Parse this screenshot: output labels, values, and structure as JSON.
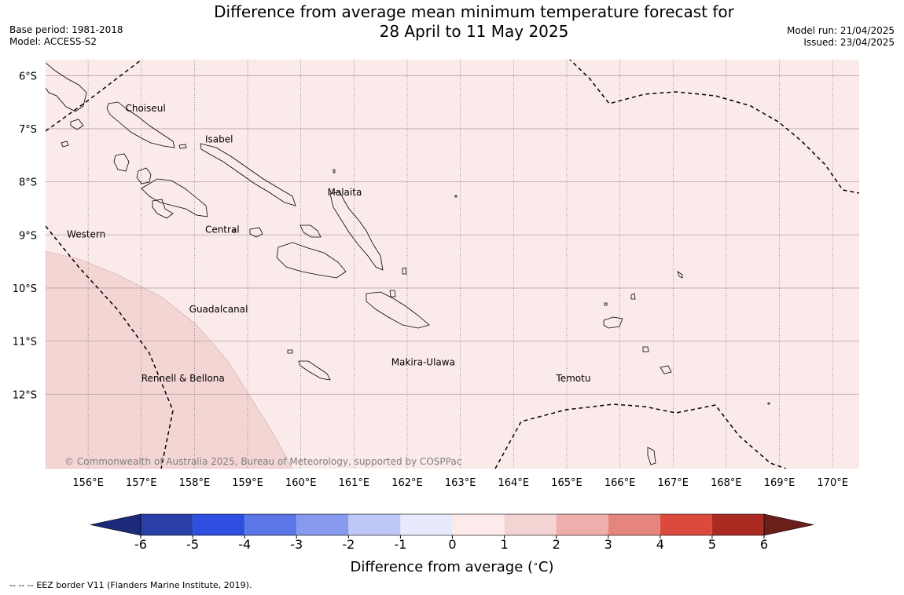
{
  "title": {
    "line1": "Difference from average mean minimum temperature forecast for",
    "line2": "28 April to 11 May 2025"
  },
  "meta_left": {
    "base_period": "Base period: 1981-2018",
    "model": "Model: ACCESS-S2"
  },
  "meta_right": {
    "model_run": "Model run: 21/04/2025",
    "issued": "Issued: 23/04/2025"
  },
  "map": {
    "lon_range": [
      155.2,
      170.5
    ],
    "lat_range": [
      -13.4,
      -5.7
    ],
    "lon_ticks": [
      {
        "value": 156,
        "label": "156°E"
      },
      {
        "value": 157,
        "label": "157°E"
      },
      {
        "value": 158,
        "label": "158°E"
      },
      {
        "value": 159,
        "label": "159°E"
      },
      {
        "value": 160,
        "label": "160°E"
      },
      {
        "value": 161,
        "label": "161°E"
      },
      {
        "value": 162,
        "label": "162°E"
      },
      {
        "value": 163,
        "label": "163°E"
      },
      {
        "value": 164,
        "label": "164°E"
      },
      {
        "value": 165,
        "label": "165°E"
      },
      {
        "value": 166,
        "label": "166°E"
      },
      {
        "value": 167,
        "label": "167°E"
      },
      {
        "value": 168,
        "label": "168°E"
      },
      {
        "value": 169,
        "label": "169°E"
      },
      {
        "value": 170,
        "label": "170°E"
      }
    ],
    "lat_ticks": [
      {
        "value": -6,
        "label": "6°S"
      },
      {
        "value": -7,
        "label": "7°S"
      },
      {
        "value": -8,
        "label": "8°S"
      },
      {
        "value": -9,
        "label": "9°S"
      },
      {
        "value": -10,
        "label": "10°S"
      },
      {
        "value": -11,
        "label": "11°S"
      },
      {
        "value": -12,
        "label": "12°S"
      }
    ],
    "background_class": "0 to 1",
    "background_color": "#fbeaea",
    "warmer_region_class": "1 to 2",
    "warmer_region_color": "#f3d6d4",
    "province_labels": [
      {
        "name": "Choiseul",
        "lon": 156.7,
        "lat": -6.62
      },
      {
        "name": "Isabel",
        "lon": 158.2,
        "lat": -7.2
      },
      {
        "name": "Malaita",
        "lon": 160.5,
        "lat": -8.2
      },
      {
        "name": "Western",
        "lon": 155.6,
        "lat": -8.99
      },
      {
        "name": "Central",
        "lon": 158.2,
        "lat": -8.9
      },
      {
        "name": "Guadalcanal",
        "lon": 157.9,
        "lat": -10.4
      },
      {
        "name": "Makira-Ulawa",
        "lon": 161.7,
        "lat": -11.4
      },
      {
        "name": "Rennell & Bellona",
        "lon": 157.0,
        "lat": -11.7
      },
      {
        "name": "Temotu",
        "lon": 164.8,
        "lat": -11.7
      }
    ],
    "copyright": "© Commonwealth of Australia 2025, Bureau of Meteorology, supported by COSPPac"
  },
  "colorbar": {
    "boundaries": [
      -6,
      -5,
      -4,
      -3,
      -2,
      -1,
      0,
      1,
      2,
      3,
      4,
      5,
      6
    ],
    "tick_labels": [
      "-6",
      "-5",
      "-4",
      "-3",
      "-2",
      "-1",
      "0",
      "1",
      "2",
      "3",
      "4",
      "5",
      "6"
    ],
    "under_color": "#1c2a7a",
    "over_color": "#6b1f1a",
    "colors": [
      "#2a3faa",
      "#2e4fe0",
      "#5b76e6",
      "#8799ee",
      "#bec7f5",
      "#e6eafc",
      "#fdeaea",
      "#f4d4d2",
      "#edaeac",
      "#e6857e",
      "#dc4a3e",
      "#ab2a22"
    ],
    "label": "Difference from average (°C)",
    "label_text": "Difference from average (",
    "label_unit": "C)"
  },
  "footnote": {
    "dash": "-- -- --",
    "text": "EEZ border V11 (Flanders Marine Institute, 2019)."
  }
}
